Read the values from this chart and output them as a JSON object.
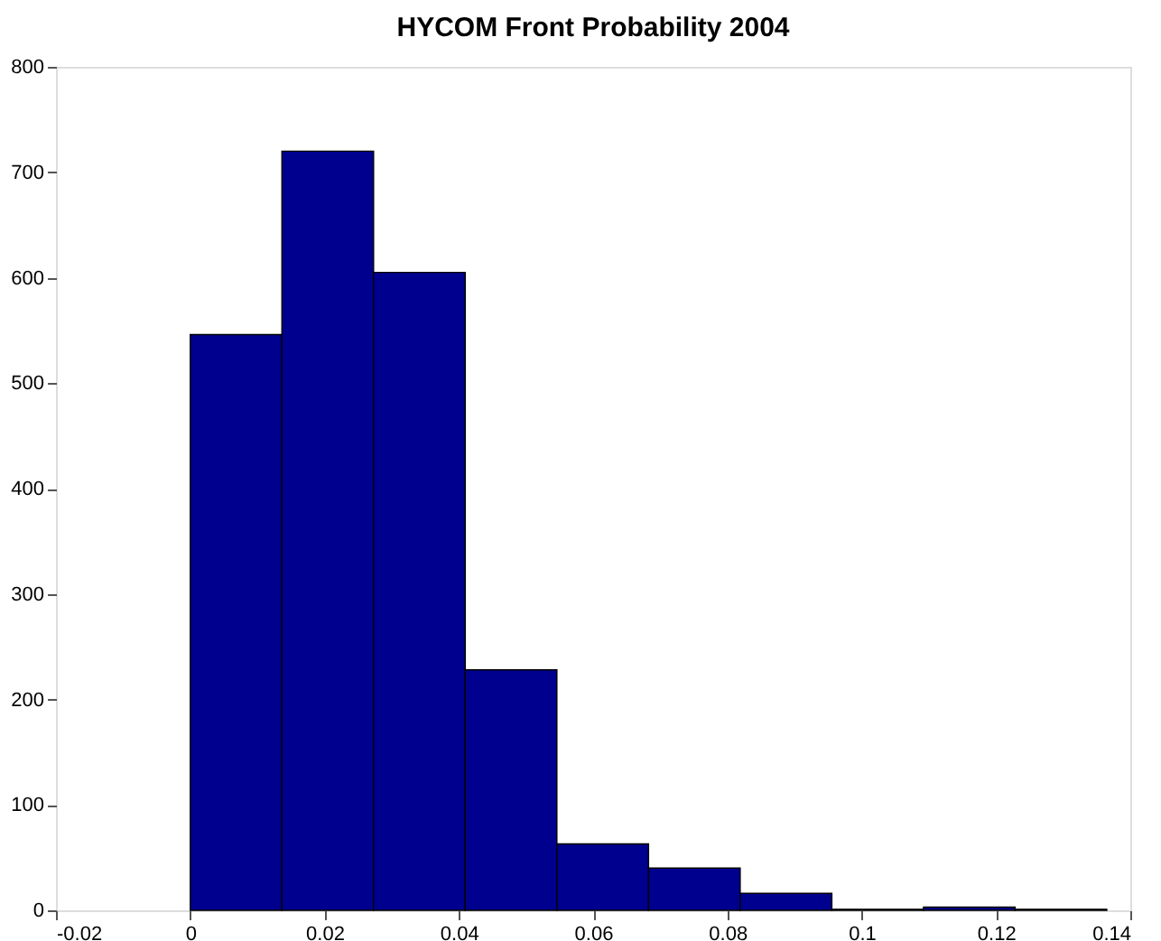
{
  "chart_data": {
    "type": "histogram",
    "title": "HYCOM Front Probability 2004",
    "bins": [
      0,
      0.01365,
      0.0273,
      0.04095,
      0.0546,
      0.06825,
      0.0819,
      0.09555,
      0.1092,
      0.12285,
      0.1365
    ],
    "values": [
      546,
      720,
      605,
      228,
      63,
      40,
      16,
      1,
      3,
      1
    ],
    "color": "#00008f",
    "xlim": [
      -0.02,
      0.14
    ],
    "xticks": [
      -0.02,
      0,
      0.02,
      0.04,
      0.06,
      0.08,
      0.1,
      0.12,
      0.14
    ],
    "ylim": [
      0,
      800
    ],
    "yticks": [
      0,
      100,
      200,
      300,
      400,
      500,
      600,
      700,
      800
    ],
    "grid": false
  }
}
